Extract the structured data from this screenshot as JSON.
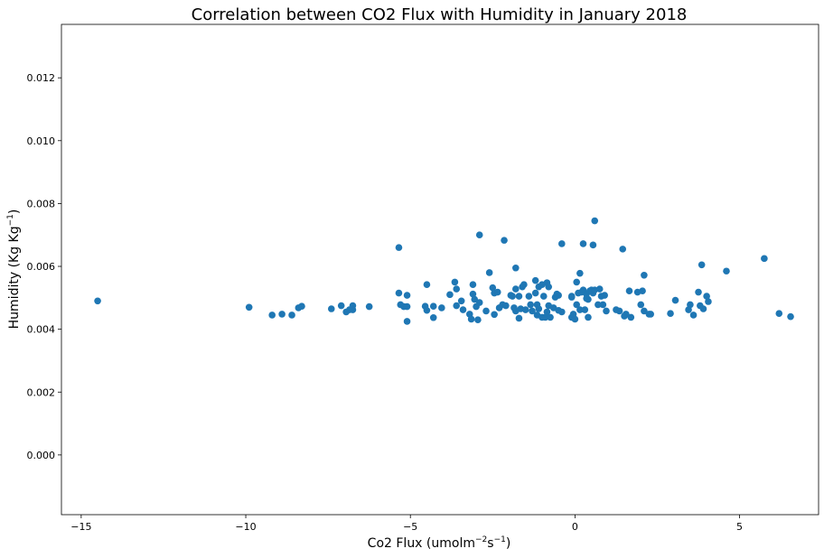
{
  "chart_data": {
    "type": "scatter",
    "title": "Correlation between CO2 Flux with Humidity in January 2018",
    "xlabel": "Co2 Flux (umolm",
    "xlabel_sup1": "−2",
    "xlabel_mid": "s",
    "xlabel_sup2": "−1",
    "xlabel_end": ")",
    "ylabel": "Humidity (Kg Kg",
    "ylabel_sup": "−1",
    "ylabel_end": ")",
    "xlim": [
      -15.6,
      7.4
    ],
    "ylim": [
      -0.0019,
      0.0137
    ],
    "xticks": [
      -15,
      -10,
      -5,
      0,
      5
    ],
    "xtick_labels": [
      "−15",
      "−10",
      "−5",
      "0",
      "5"
    ],
    "yticks": [
      0.0,
      0.002,
      0.004,
      0.006,
      0.008,
      0.01,
      0.012
    ],
    "ytick_labels": [
      "0.000",
      "0.002",
      "0.004",
      "0.006",
      "0.008",
      "0.010",
      "0.012"
    ],
    "grid": false,
    "marker_color": "#1f77b4",
    "points": [
      [
        -14.5,
        0.0049
      ],
      [
        -9.9,
        0.0047
      ],
      [
        -9.2,
        0.00445
      ],
      [
        -8.9,
        0.00448
      ],
      [
        -8.6,
        0.00445
      ],
      [
        -8.4,
        0.00468
      ],
      [
        -8.3,
        0.00473
      ],
      [
        -7.4,
        0.00465
      ],
      [
        -7.1,
        0.00475
      ],
      [
        -6.95,
        0.00455
      ],
      [
        -6.85,
        0.00462
      ],
      [
        -6.75,
        0.00475
      ],
      [
        -6.75,
        0.00462
      ],
      [
        -6.25,
        0.00472
      ],
      [
        -5.35,
        0.0066
      ],
      [
        -5.35,
        0.00515
      ],
      [
        -5.3,
        0.00478
      ],
      [
        -5.2,
        0.00472
      ],
      [
        -5.1,
        0.00508
      ],
      [
        -5.1,
        0.00472
      ],
      [
        -5.1,
        0.00425
      ],
      [
        -4.5,
        0.00542
      ],
      [
        -4.55,
        0.00473
      ],
      [
        -4.5,
        0.0046
      ],
      [
        -4.3,
        0.00437
      ],
      [
        -4.3,
        0.00473
      ],
      [
        -4.05,
        0.00468
      ],
      [
        -3.8,
        0.0051
      ],
      [
        -3.65,
        0.0055
      ],
      [
        -3.6,
        0.00528
      ],
      [
        -3.6,
        0.00475
      ],
      [
        -3.45,
        0.0049
      ],
      [
        -3.4,
        0.00462
      ],
      [
        -3.2,
        0.00448
      ],
      [
        -3.15,
        0.00432
      ],
      [
        -3.1,
        0.00542
      ],
      [
        -3.1,
        0.00512
      ],
      [
        -3.05,
        0.00495
      ],
      [
        -3.0,
        0.00472
      ],
      [
        -2.95,
        0.0043
      ],
      [
        -2.9,
        0.007
      ],
      [
        -2.9,
        0.00485
      ],
      [
        -2.7,
        0.00458
      ],
      [
        -2.6,
        0.0058
      ],
      [
        -2.5,
        0.00532
      ],
      [
        -2.45,
        0.00515
      ],
      [
        -2.45,
        0.00447
      ],
      [
        -2.35,
        0.00518
      ],
      [
        -2.3,
        0.00468
      ],
      [
        -2.2,
        0.00478
      ],
      [
        -2.15,
        0.00683
      ],
      [
        -2.1,
        0.00475
      ],
      [
        -1.95,
        0.00508
      ],
      [
        -1.9,
        0.00505
      ],
      [
        -1.85,
        0.00468
      ],
      [
        -1.8,
        0.00595
      ],
      [
        -1.8,
        0.00528
      ],
      [
        -1.8,
        0.00458
      ],
      [
        -1.7,
        0.00505
      ],
      [
        -1.7,
        0.00435
      ],
      [
        -1.65,
        0.00465
      ],
      [
        -1.6,
        0.00535
      ],
      [
        -1.55,
        0.00542
      ],
      [
        -1.5,
        0.00462
      ],
      [
        -1.4,
        0.00505
      ],
      [
        -1.35,
        0.00478
      ],
      [
        -1.3,
        0.00458
      ],
      [
        -1.2,
        0.00555
      ],
      [
        -1.2,
        0.00515
      ],
      [
        -1.15,
        0.00478
      ],
      [
        -1.15,
        0.00445
      ],
      [
        -1.1,
        0.00535
      ],
      [
        -1.1,
        0.00465
      ],
      [
        -1.0,
        0.00542
      ],
      [
        -1.0,
        0.00438
      ],
      [
        -0.95,
        0.00505
      ],
      [
        -0.9,
        0.00438
      ],
      [
        -0.85,
        0.00548
      ],
      [
        -0.85,
        0.00455
      ],
      [
        -0.8,
        0.00535
      ],
      [
        -0.8,
        0.00475
      ],
      [
        -0.75,
        0.00438
      ],
      [
        -0.65,
        0.00468
      ],
      [
        -0.6,
        0.00502
      ],
      [
        -0.55,
        0.00512
      ],
      [
        -0.5,
        0.00508
      ],
      [
        -0.5,
        0.0046
      ],
      [
        -0.4,
        0.00672
      ],
      [
        -0.4,
        0.00455
      ],
      [
        -0.1,
        0.00505
      ],
      [
        -0.1,
        0.00502
      ],
      [
        -0.1,
        0.00438
      ],
      [
        -0.05,
        0.00448
      ],
      [
        0.0,
        0.00432
      ],
      [
        0.05,
        0.0055
      ],
      [
        0.05,
        0.00478
      ],
      [
        0.1,
        0.00515
      ],
      [
        0.15,
        0.00578
      ],
      [
        0.15,
        0.00462
      ],
      [
        0.2,
        0.00518
      ],
      [
        0.25,
        0.00672
      ],
      [
        0.25,
        0.00525
      ],
      [
        0.3,
        0.00462
      ],
      [
        0.35,
        0.00512
      ],
      [
        0.35,
        0.00498
      ],
      [
        0.4,
        0.00495
      ],
      [
        0.4,
        0.00438
      ],
      [
        0.45,
        0.00522
      ],
      [
        0.5,
        0.00525
      ],
      [
        0.55,
        0.00668
      ],
      [
        0.55,
        0.00515
      ],
      [
        0.6,
        0.00745
      ],
      [
        0.6,
        0.00525
      ],
      [
        0.7,
        0.00478
      ],
      [
        0.75,
        0.00528
      ],
      [
        0.8,
        0.00505
      ],
      [
        0.85,
        0.00478
      ],
      [
        0.9,
        0.00508
      ],
      [
        0.95,
        0.00458
      ],
      [
        1.25,
        0.00462
      ],
      [
        1.35,
        0.00458
      ],
      [
        1.45,
        0.00655
      ],
      [
        1.5,
        0.00442
      ],
      [
        1.55,
        0.00448
      ],
      [
        1.65,
        0.00522
      ],
      [
        1.7,
        0.00438
      ],
      [
        1.9,
        0.00518
      ],
      [
        2.0,
        0.00478
      ],
      [
        2.05,
        0.00522
      ],
      [
        2.1,
        0.00572
      ],
      [
        2.1,
        0.00458
      ],
      [
        2.25,
        0.00448
      ],
      [
        2.3,
        0.00448
      ],
      [
        2.9,
        0.0045
      ],
      [
        3.05,
        0.00492
      ],
      [
        3.45,
        0.00462
      ],
      [
        3.5,
        0.00478
      ],
      [
        3.6,
        0.00445
      ],
      [
        3.75,
        0.00518
      ],
      [
        3.8,
        0.00475
      ],
      [
        3.85,
        0.00605
      ],
      [
        3.9,
        0.00465
      ],
      [
        4.0,
        0.00505
      ],
      [
        4.05,
        0.00488
      ],
      [
        4.6,
        0.00585
      ],
      [
        5.75,
        0.00625
      ],
      [
        6.2,
        0.0045
      ],
      [
        6.55,
        0.0044
      ]
    ]
  }
}
